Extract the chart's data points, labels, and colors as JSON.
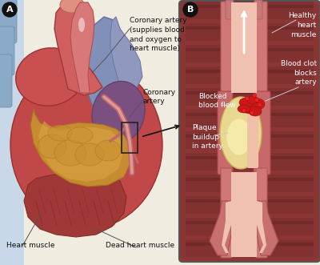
{
  "bg_color": "#f0ece0",
  "panel_A_label": "A",
  "panel_B_label": "B",
  "labels": {
    "coronary_artery_top": "Coronary artery\n(supplies blood\nand oxygen to\nheart muscle)",
    "coronary_artery_mid": "Coronary\nartery",
    "heart_muscle": "Heart muscle",
    "dead_heart_muscle": "Dead heart muscle",
    "healthy_heart_muscle": "Healthy\nheart\nmuscle",
    "blood_clot": "Blood clot\nblocks\nartery",
    "blocked_flow": "Blocked\nblood flow",
    "plaque": "Plaque\nbuildup\nin artery"
  },
  "text_color": "#111111",
  "label_fontsize": 6.5,
  "circle_label_fontsize": 8
}
